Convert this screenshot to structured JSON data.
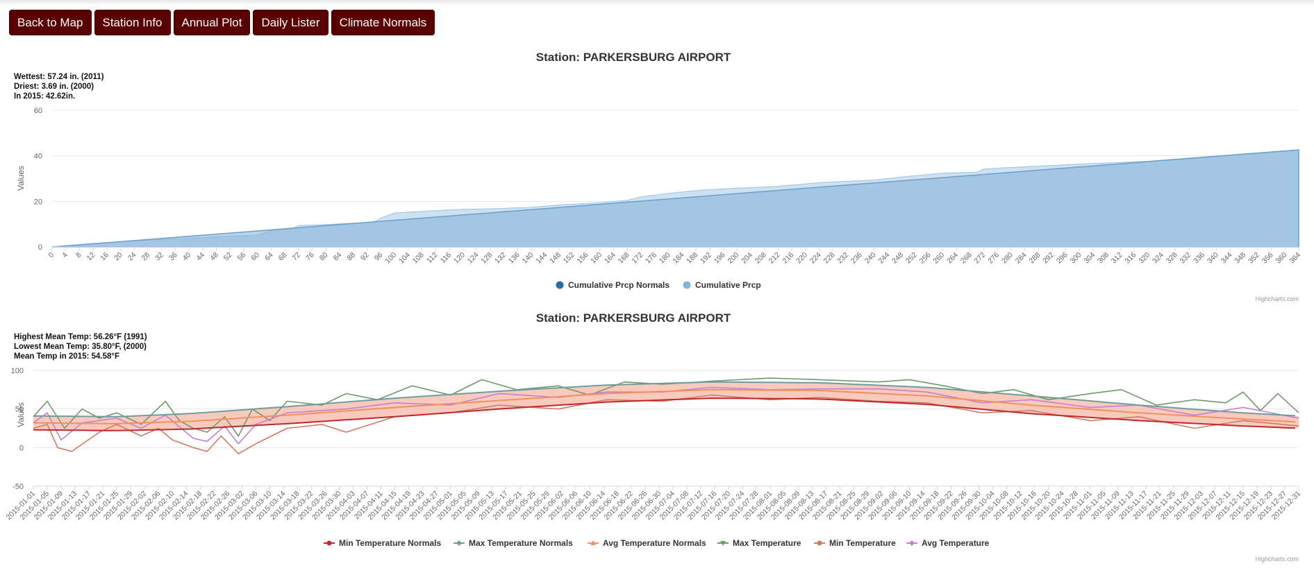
{
  "nav": {
    "buttons": [
      {
        "label": "Back to Map"
      },
      {
        "label": "Station Info"
      },
      {
        "label": "Annual Plot"
      },
      {
        "label": "Daily Lister"
      },
      {
        "label": "Climate Normals"
      }
    ]
  },
  "chart_data": [
    {
      "type": "area",
      "title": "Station: PARKERSBURG AIRPORT",
      "annotations": [
        "Wettest: 57.24 in. (2011)",
        "Driest: 3.69 in. (2000)",
        "In 2015: 42.62in."
      ],
      "ylabel": "Values",
      "xlabel": "",
      "xlim": [
        0,
        364
      ],
      "ylim": [
        0,
        60
      ],
      "x_tick_step": 4,
      "y_ticks": [
        0,
        20,
        40,
        60
      ],
      "grid": true,
      "legend": "bottom-center",
      "credit": "Highcharts.com",
      "series": [
        {
          "name": "Cumulative Prcp Normals",
          "color": "#2b6aa8",
          "x": [
            0,
            364
          ],
          "values": [
            0,
            42.6
          ]
        },
        {
          "name": "Cumulative Prcp",
          "color": "#a9cde6",
          "x": [
            0,
            10,
            20,
            30,
            40,
            50,
            60,
            64,
            70,
            72,
            80,
            90,
            94,
            96,
            100,
            110,
            120,
            130,
            140,
            146,
            150,
            160,
            168,
            172,
            180,
            190,
            200,
            210,
            218,
            224,
            240,
            250,
            260,
            270,
            272,
            280,
            300,
            320,
            340,
            364
          ],
          "values": [
            0,
            1.3,
            2.3,
            3.1,
            3.8,
            4.6,
            5.2,
            7.2,
            8.0,
            9.4,
            9.8,
            10.6,
            11.0,
            12.6,
            14.9,
            15.8,
            16.5,
            16.8,
            17.4,
            18.2,
            18.6,
            19.4,
            20.5,
            22.0,
            23.5,
            25.0,
            25.8,
            26.4,
            27.4,
            28.2,
            29.4,
            31.0,
            32.4,
            32.8,
            34.2,
            34.9,
            36.4,
            37.6,
            40.0,
            42.6
          ]
        }
      ]
    },
    {
      "type": "line",
      "title": "Station: PARKERSBURG AIRPORT",
      "annotations": [
        "Highest Mean Temp: 56.26°F (1991)",
        "Lowest Mean Temp: 35.80°F, (2000)",
        "Mean Temp in 2015: 54.58°F"
      ],
      "ylabel": "Values",
      "xlabel": "",
      "x_start": "2015-01-01",
      "x_end": "2015-12-31",
      "ylim": [
        -50,
        100
      ],
      "y_ticks": [
        -50,
        0,
        50,
        100
      ],
      "grid": true,
      "legend": "bottom-center",
      "credit": "Highcharts.com",
      "series": [
        {
          "name": "Min Temperature Normals",
          "color": "#c0282b",
          "marker": "circle",
          "x": [
            "2015-01-01",
            "2015-01-25",
            "2015-02-15",
            "2015-03-15",
            "2015-04-15",
            "2015-05-15",
            "2015-06-15",
            "2015-07-15",
            "2015-08-15",
            "2015-09-15",
            "2015-10-15",
            "2015-11-15",
            "2015-12-15",
            "2015-12-31"
          ],
          "values": [
            23,
            22,
            24,
            31,
            40,
            50,
            59,
            64,
            63,
            56,
            44,
            35,
            28,
            25
          ]
        },
        {
          "name": "Max Temperature Normals",
          "color": "#6f9c9c",
          "marker": "diamond",
          "x": [
            "2015-01-01",
            "2015-01-25",
            "2015-02-15",
            "2015-03-15",
            "2015-04-15",
            "2015-05-15",
            "2015-06-15",
            "2015-07-15",
            "2015-08-15",
            "2015-09-15",
            "2015-10-15",
            "2015-11-15",
            "2015-12-15",
            "2015-12-31"
          ],
          "values": [
            41,
            40,
            44,
            53,
            64,
            73,
            81,
            85,
            84,
            78,
            67,
            55,
            45,
            41
          ]
        },
        {
          "name": "Avg Temperature Normals",
          "color": "#f0915c",
          "marker": "triangle",
          "x": [
            "2015-01-01",
            "2015-01-25",
            "2015-02-15",
            "2015-03-15",
            "2015-04-15",
            "2015-05-15",
            "2015-06-15",
            "2015-07-15",
            "2015-08-15",
            "2015-09-15",
            "2015-10-15",
            "2015-11-15",
            "2015-12-15",
            "2015-12-31"
          ],
          "values": [
            32,
            31,
            34,
            42,
            52,
            61,
            70,
            75,
            74,
            67,
            55,
            45,
            37,
            33
          ]
        },
        {
          "name": "Max Temperature",
          "color": "#6e9a6a",
          "marker": "triangle-down",
          "x": [
            "2015-01-01",
            "2015-01-05",
            "2015-01-10",
            "2015-01-15",
            "2015-01-20",
            "2015-01-25",
            "2015-02-01",
            "2015-02-08",
            "2015-02-12",
            "2015-02-16",
            "2015-02-20",
            "2015-02-25",
            "2015-03-01",
            "2015-03-05",
            "2015-03-10",
            "2015-03-15",
            "2015-03-25",
            "2015-04-01",
            "2015-04-10",
            "2015-04-20",
            "2015-05-01",
            "2015-05-10",
            "2015-05-20",
            "2015-06-01",
            "2015-06-10",
            "2015-06-20",
            "2015-07-01",
            "2015-07-15",
            "2015-08-01",
            "2015-08-15",
            "2015-09-01",
            "2015-09-10",
            "2015-09-20",
            "2015-10-01",
            "2015-10-10",
            "2015-10-20",
            "2015-11-01",
            "2015-11-10",
            "2015-11-20",
            "2015-12-01",
            "2015-12-10",
            "2015-12-15",
            "2015-12-20",
            "2015-12-25",
            "2015-12-31"
          ],
          "values": [
            40,
            60,
            25,
            50,
            38,
            45,
            30,
            60,
            35,
            25,
            20,
            40,
            15,
            50,
            35,
            60,
            55,
            70,
            62,
            80,
            68,
            88,
            75,
            80,
            68,
            85,
            82,
            86,
            90,
            88,
            85,
            88,
            80,
            70,
            75,
            62,
            70,
            75,
            55,
            62,
            58,
            72,
            48,
            70,
            45
          ]
        },
        {
          "name": "Min Temperature",
          "color": "#d27a60",
          "marker": "circle",
          "x": [
            "2015-01-01",
            "2015-01-05",
            "2015-01-08",
            "2015-01-12",
            "2015-01-20",
            "2015-01-25",
            "2015-02-01",
            "2015-02-06",
            "2015-02-10",
            "2015-02-16",
            "2015-02-20",
            "2015-02-24",
            "2015-03-01",
            "2015-03-06",
            "2015-03-15",
            "2015-03-25",
            "2015-04-01",
            "2015-04-15",
            "2015-05-01",
            "2015-05-15",
            "2015-06-01",
            "2015-06-15",
            "2015-07-01",
            "2015-07-15",
            "2015-08-01",
            "2015-08-15",
            "2015-09-01",
            "2015-09-15",
            "2015-10-01",
            "2015-10-15",
            "2015-11-01",
            "2015-11-15",
            "2015-12-01",
            "2015-12-15",
            "2015-12-31"
          ],
          "values": [
            25,
            30,
            0,
            -5,
            20,
            30,
            15,
            25,
            10,
            0,
            -5,
            15,
            -8,
            5,
            25,
            30,
            20,
            40,
            45,
            55,
            50,
            62,
            60,
            68,
            62,
            65,
            60,
            58,
            45,
            48,
            35,
            40,
            25,
            35,
            28
          ]
        },
        {
          "name": "Avg Temperature",
          "color": "#c77ed0",
          "marker": "diamond",
          "x": [
            "2015-01-01",
            "2015-01-05",
            "2015-01-09",
            "2015-01-15",
            "2015-01-25",
            "2015-02-01",
            "2015-02-08",
            "2015-02-16",
            "2015-02-20",
            "2015-02-25",
            "2015-03-01",
            "2015-03-06",
            "2015-03-15",
            "2015-04-01",
            "2015-04-15",
            "2015-05-01",
            "2015-05-15",
            "2015-06-01",
            "2015-06-15",
            "2015-07-01",
            "2015-07-15",
            "2015-08-01",
            "2015-08-15",
            "2015-09-01",
            "2015-09-15",
            "2015-10-01",
            "2015-10-15",
            "2015-11-01",
            "2015-11-15",
            "2015-12-01",
            "2015-12-15",
            "2015-12-31"
          ],
          "values": [
            32,
            45,
            10,
            32,
            38,
            25,
            42,
            12,
            8,
            28,
            5,
            30,
            45,
            50,
            58,
            55,
            70,
            65,
            72,
            72,
            78,
            75,
            76,
            76,
            72,
            58,
            62,
            52,
            55,
            42,
            52,
            38
          ]
        }
      ]
    }
  ]
}
